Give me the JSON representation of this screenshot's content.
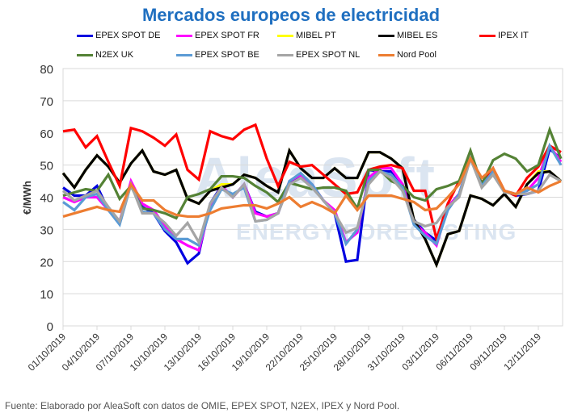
{
  "chart_data": {
    "type": "line",
    "title": "Mercados europeos de electricidad",
    "ylabel": "€/MWh",
    "xlabel": "",
    "ylim": [
      0,
      80
    ],
    "yticks": [
      0,
      10,
      20,
      30,
      40,
      50,
      60,
      70,
      80
    ],
    "grid": true,
    "legend_position": "top",
    "xtick_labels": [
      "01/10/2019",
      "04/10/2019",
      "07/10/2019",
      "10/10/2019",
      "13/10/2019",
      "16/10/2019",
      "19/10/2019",
      "22/10/2019",
      "25/10/2019",
      "28/10/2019",
      "31/10/2019",
      "03/11/2019",
      "06/11/2019",
      "09/11/2019",
      "12/11/2019"
    ],
    "x_start": "01/10/2019",
    "x_step_days": 1,
    "series": [
      {
        "name": "EPEX SPOT DE",
        "color": "#0000e0",
        "values": [
          43,
          40.5,
          40.5,
          43.5,
          36,
          32.5,
          44,
          37,
          35,
          29.5,
          26,
          19.5,
          22.5,
          38,
          43.5,
          40,
          44,
          35.5,
          34,
          35,
          44.5,
          47,
          44,
          39,
          35,
          20,
          20.5,
          48.5,
          48,
          48,
          44,
          33,
          29,
          26.5,
          37,
          41,
          52,
          44,
          47,
          42,
          40.5,
          41,
          42,
          55,
          52
        ]
      },
      {
        "name": "EPEX SPOT FR",
        "color": "#ff00ff",
        "values": [
          40,
          38.5,
          40,
          40,
          36,
          32.5,
          45,
          38,
          36,
          31,
          27,
          25,
          23.5,
          37,
          43.5,
          40,
          44,
          35,
          34,
          35,
          45,
          47,
          44,
          39,
          36,
          26,
          29,
          46,
          49,
          49,
          44,
          32,
          29,
          25,
          37,
          41,
          52,
          44,
          48,
          42,
          41,
          42,
          46,
          56,
          51
        ]
      },
      {
        "name": "MIBEL PT",
        "color": "#ffff00",
        "values": [
          47.5,
          43,
          48.5,
          53,
          49.5,
          44.5,
          50.5,
          54.5,
          48,
          47,
          48.5,
          39.5,
          38,
          42,
          44,
          44,
          47,
          46,
          43.5,
          41.5,
          54.5,
          49,
          46,
          46,
          49,
          46,
          46,
          54,
          54,
          52,
          49,
          33,
          27,
          19,
          28.5,
          29.5,
          40.5,
          39.5,
          37.5,
          41,
          37,
          44,
          48,
          48,
          45
        ]
      },
      {
        "name": "MIBEL ES",
        "color": "#000000",
        "values": [
          47.5,
          43,
          48.5,
          53,
          49.5,
          44.5,
          50.5,
          54.5,
          48,
          47,
          48.5,
          39.5,
          38,
          42,
          43,
          44,
          47,
          46,
          43.5,
          41.5,
          54.5,
          49,
          46,
          46,
          49,
          46,
          46,
          54,
          54,
          52,
          49,
          33,
          27,
          19,
          28.5,
          29.5,
          40.5,
          39.5,
          37.5,
          41,
          37,
          44,
          47.5,
          48,
          45
        ]
      },
      {
        "name": "IPEX IT",
        "color": "#ff0000",
        "values": [
          60.5,
          61,
          55.5,
          59,
          51,
          43.5,
          61.5,
          60.5,
          58.5,
          56,
          59.5,
          48.5,
          45.5,
          60.5,
          59,
          58,
          61,
          62.5,
          52,
          43.5,
          51,
          49.5,
          50,
          47,
          44,
          41,
          41.5,
          48.5,
          49.5,
          50,
          49,
          42,
          42,
          27,
          38,
          45,
          52,
          44.5,
          49,
          42,
          40.5,
          46,
          49.5,
          56,
          54
        ]
      },
      {
        "name": "N2EX UK",
        "color": "#548235",
        "values": [
          40.5,
          41.5,
          42.5,
          42,
          47,
          39.5,
          43.5,
          36.5,
          36,
          35,
          33.5,
          40,
          41,
          42.5,
          46.5,
          46.5,
          46,
          43.5,
          41.5,
          38.5,
          44.5,
          43.5,
          42.5,
          43,
          43,
          42,
          36.5,
          48.5,
          48.5,
          45,
          43.5,
          40,
          39,
          42.5,
          43.5,
          45,
          54.5,
          44,
          51.5,
          53.5,
          52,
          48,
          50,
          61,
          52
        ]
      },
      {
        "name": "EPEX SPOT BE",
        "color": "#5b9bd5",
        "values": [
          38.5,
          36,
          40,
          41,
          36,
          31.5,
          44,
          35.5,
          35,
          30,
          27,
          27,
          25,
          36,
          42.5,
          41,
          43,
          32.5,
          33,
          35,
          45,
          47.5,
          44,
          39,
          35,
          25.5,
          30,
          45,
          48,
          47,
          43,
          31.5,
          28,
          25.5,
          36,
          41,
          52,
          43.5,
          48,
          42,
          41,
          42,
          44,
          56,
          50
        ]
      },
      {
        "name": "EPEX SPOT NL",
        "color": "#a5a5a5",
        "values": [
          42,
          39,
          40.5,
          42,
          37,
          32.5,
          44,
          35,
          35,
          32,
          28,
          32,
          26,
          38,
          43,
          40,
          44,
          32.5,
          33,
          35,
          44,
          46,
          43,
          39,
          35,
          29,
          30.5,
          44,
          48,
          46,
          42,
          32.5,
          31,
          32,
          37,
          40,
          52,
          43,
          47,
          41.5,
          41,
          41,
          42,
          47,
          45
        ]
      },
      {
        "name": "Nord Pool",
        "color": "#ed7d31",
        "values": [
          34,
          35,
          36,
          37,
          36,
          35.5,
          44,
          39,
          39,
          36,
          34.5,
          34,
          34,
          35,
          36.5,
          37,
          37.5,
          37.5,
          36.5,
          38,
          40,
          37,
          38.5,
          37,
          35,
          40.5,
          36,
          40.5,
          40.5,
          40.5,
          39.5,
          38.5,
          36,
          36.5,
          40,
          44,
          52,
          46,
          49,
          42,
          41,
          43,
          41.5,
          43.5,
          45
        ]
      }
    ]
  },
  "source": "Fuente: Elaborado por AleaSoft con datos de OMIE, EPEX SPOT, N2EX, IPEX y Nord Pool.",
  "watermark": {
    "line1": "AleaSoft",
    "line2": "ENERGY FORECASTING"
  }
}
